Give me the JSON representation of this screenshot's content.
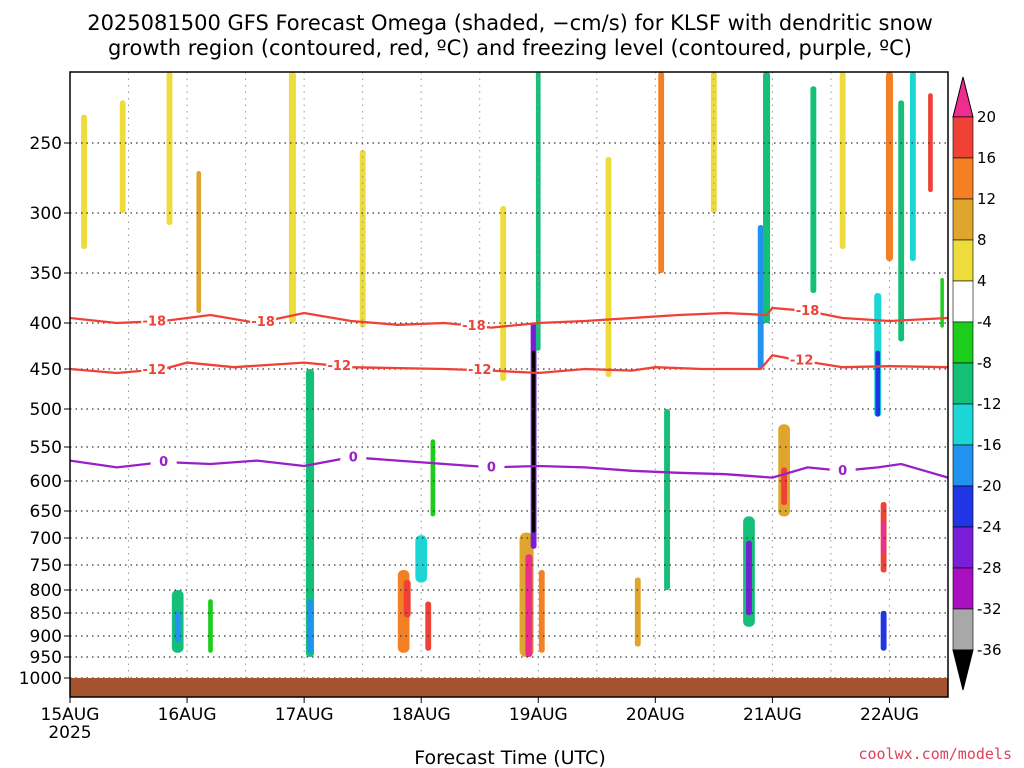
{
  "chart_data": {
    "type": "heatmap",
    "title_line1": "2025081500 GFS Forecast Omega (shaded, −cm/s) for KLSF with dendritic snow",
    "title_line2": "growth region (contoured, red, ºC) and freezing level (contoured, purple, ºC)",
    "xlabel": "Forecast Time (UTC)",
    "credit": "coolwx.com/models",
    "x_ticks": [
      {
        "day": 0,
        "label": "15AUG",
        "sub": "2025"
      },
      {
        "day": 1,
        "label": "16AUG"
      },
      {
        "day": 2,
        "label": "17AUG"
      },
      {
        "day": 3,
        "label": "18AUG"
      },
      {
        "day": 4,
        "label": "19AUG"
      },
      {
        "day": 5,
        "label": "20AUG"
      },
      {
        "day": 6,
        "label": "21AUG"
      },
      {
        "day": 7,
        "label": "22AUG"
      }
    ],
    "x_range_days": [
      0,
      7.5
    ],
    "y_axis": "pressure (hPa), reversed",
    "y_range": [
      1020,
      200
    ],
    "y_ticks": [
      250,
      300,
      350,
      400,
      450,
      500,
      550,
      600,
      650,
      700,
      750,
      800,
      850,
      900,
      950,
      1000
    ],
    "grid": true,
    "colorbar": {
      "labels": [
        "20",
        "16",
        "12",
        "8",
        "4",
        "-4",
        "-8",
        "-12",
        "-16",
        "-20",
        "-24",
        "-28",
        "-32",
        "-36"
      ],
      "bins": [
        {
          "lo": 20,
          "hi": 99,
          "color": "#ee2e8e"
        },
        {
          "lo": 16,
          "hi": 20,
          "color": "#ef4136"
        },
        {
          "lo": 12,
          "hi": 16,
          "color": "#f48025"
        },
        {
          "lo": 8,
          "hi": 12,
          "color": "#e0a52c"
        },
        {
          "lo": 4,
          "hi": 8,
          "color": "#eddc3c"
        },
        {
          "lo": -4,
          "hi": 4,
          "color": "#ffffff"
        },
        {
          "lo": -8,
          "hi": -4,
          "color": "#1ccd1c"
        },
        {
          "lo": -12,
          "hi": -8,
          "color": "#14bf78"
        },
        {
          "lo": -16,
          "hi": -12,
          "color": "#1cd5d5"
        },
        {
          "lo": -20,
          "hi": -16,
          "color": "#2193ef"
        },
        {
          "lo": -24,
          "hi": -20,
          "color": "#2035e5"
        },
        {
          "lo": -28,
          "hi": -24,
          "color": "#7a1dd6"
        },
        {
          "lo": -32,
          "hi": -28,
          "color": "#a90fc0"
        },
        {
          "lo": -36,
          "hi": -32,
          "color": "#a8a8a8"
        },
        {
          "lo": -99,
          "hi": -36,
          "color": "#000000"
        }
      ]
    },
    "omega_cells": [
      {
        "day": 0.12,
        "p": 280,
        "dp": 100,
        "w": 0.05,
        "v": 5
      },
      {
        "day": 0.45,
        "p": 260,
        "dp": 80,
        "w": 0.05,
        "v": 5
      },
      {
        "day": 0.85,
        "p": 250,
        "dp": 120,
        "w": 0.05,
        "v": 6
      },
      {
        "day": 1.1,
        "p": 330,
        "dp": 120,
        "w": 0.04,
        "v": 9
      },
      {
        "day": 0.92,
        "p": 870,
        "dp": 140,
        "w": 0.1,
        "v": -9
      },
      {
        "day": 0.92,
        "p": 880,
        "dp": 70,
        "w": 0.05,
        "v": -18
      },
      {
        "day": 1.2,
        "p": 880,
        "dp": 120,
        "w": 0.04,
        "v": -7
      },
      {
        "day": 1.9,
        "p": 300,
        "dp": 200,
        "w": 0.06,
        "v": 5
      },
      {
        "day": 2.05,
        "p": 700,
        "dp": 500,
        "w": 0.07,
        "v": -10
      },
      {
        "day": 2.05,
        "p": 880,
        "dp": 120,
        "w": 0.05,
        "v": -17
      },
      {
        "day": 2.5,
        "p": 330,
        "dp": 150,
        "w": 0.05,
        "v": 6
      },
      {
        "day": 2.85,
        "p": 850,
        "dp": 180,
        "w": 0.1,
        "v": 14
      },
      {
        "day": 2.88,
        "p": 820,
        "dp": 80,
        "w": 0.06,
        "v": 18
      },
      {
        "day": 3.0,
        "p": 740,
        "dp": 90,
        "w": 0.1,
        "v": -13
      },
      {
        "day": 3.06,
        "p": 880,
        "dp": 110,
        "w": 0.05,
        "v": 19
      },
      {
        "day": 3.1,
        "p": 600,
        "dp": 120,
        "w": 0.04,
        "v": -8
      },
      {
        "day": 3.7,
        "p": 380,
        "dp": 170,
        "w": 0.05,
        "v": 5
      },
      {
        "day": 3.9,
        "p": 820,
        "dp": 260,
        "w": 0.12,
        "v": 9
      },
      {
        "day": 3.92,
        "p": 840,
        "dp": 220,
        "w": 0.06,
        "v": 21
      },
      {
        "day": 3.96,
        "p": 560,
        "dp": 320,
        "w": 0.05,
        "v": -26
      },
      {
        "day": 3.96,
        "p": 560,
        "dp": 260,
        "w": 0.03,
        "v": -40
      },
      {
        "day": 4.0,
        "p": 300,
        "dp": 260,
        "w": 0.04,
        "v": -12
      },
      {
        "day": 4.03,
        "p": 850,
        "dp": 180,
        "w": 0.05,
        "v": 14
      },
      {
        "day": 4.6,
        "p": 360,
        "dp": 200,
        "w": 0.05,
        "v": 5
      },
      {
        "day": 4.85,
        "p": 850,
        "dp": 150,
        "w": 0.05,
        "v": 9
      },
      {
        "day": 5.05,
        "p": 270,
        "dp": 160,
        "w": 0.05,
        "v": 13
      },
      {
        "day": 5.1,
        "p": 650,
        "dp": 300,
        "w": 0.05,
        "v": -9
      },
      {
        "day": 5.5,
        "p": 230,
        "dp": 140,
        "w": 0.05,
        "v": 6
      },
      {
        "day": 5.8,
        "p": 770,
        "dp": 220,
        "w": 0.1,
        "v": -9
      },
      {
        "day": 5.8,
        "p": 780,
        "dp": 150,
        "w": 0.05,
        "v": -26
      },
      {
        "day": 5.9,
        "p": 380,
        "dp": 140,
        "w": 0.05,
        "v": -18
      },
      {
        "day": 5.95,
        "p": 300,
        "dp": 200,
        "w": 0.06,
        "v": -9
      },
      {
        "day": 6.1,
        "p": 590,
        "dp": 140,
        "w": 0.1,
        "v": 10
      },
      {
        "day": 6.1,
        "p": 610,
        "dp": 60,
        "w": 0.05,
        "v": 18
      },
      {
        "day": 6.35,
        "p": 290,
        "dp": 160,
        "w": 0.05,
        "v": -9
      },
      {
        "day": 6.6,
        "p": 250,
        "dp": 160,
        "w": 0.05,
        "v": 6
      },
      {
        "day": 6.9,
        "p": 440,
        "dp": 140,
        "w": 0.06,
        "v": -16
      },
      {
        "day": 6.9,
        "p": 470,
        "dp": 80,
        "w": 0.04,
        "v": -21
      },
      {
        "day": 6.95,
        "p": 700,
        "dp": 130,
        "w": 0.05,
        "v": 17
      },
      {
        "day": 6.95,
        "p": 700,
        "dp": 60,
        "w": 0.03,
        "v": 22
      },
      {
        "day": 6.95,
        "p": 890,
        "dp": 90,
        "w": 0.05,
        "v": -21
      },
      {
        "day": 7.0,
        "p": 260,
        "dp": 160,
        "w": 0.06,
        "v": 14
      },
      {
        "day": 7.1,
        "p": 320,
        "dp": 200,
        "w": 0.05,
        "v": -9
      },
      {
        "day": 7.2,
        "p": 270,
        "dp": 140,
        "w": 0.05,
        "v": -14
      },
      {
        "day": 7.35,
        "p": 250,
        "dp": 70,
        "w": 0.04,
        "v": 18
      },
      {
        "day": 7.45,
        "p": 380,
        "dp": 50,
        "w": 0.03,
        "v": -7
      }
    ],
    "contours": [
      {
        "name": "-18",
        "color": "#ef4136",
        "labels_at_days": [
          0.72,
          1.65,
          3.45,
          6.3
        ],
        "points": [
          [
            0,
            395
          ],
          [
            0.4,
            400
          ],
          [
            0.8,
            398
          ],
          [
            1.2,
            392
          ],
          [
            1.6,
            400
          ],
          [
            2.0,
            390
          ],
          [
            2.4,
            398
          ],
          [
            2.8,
            402
          ],
          [
            3.2,
            400
          ],
          [
            3.6,
            405
          ],
          [
            4.0,
            400
          ],
          [
            4.4,
            398
          ],
          [
            4.8,
            395
          ],
          [
            5.2,
            392
          ],
          [
            5.6,
            390
          ],
          [
            5.95,
            392
          ],
          [
            6.0,
            385
          ],
          [
            6.3,
            388
          ],
          [
            6.6,
            395
          ],
          [
            7.0,
            398
          ],
          [
            7.5,
            395
          ]
        ]
      },
      {
        "name": "-12",
        "color": "#ef4136",
        "labels_at_days": [
          0.72,
          2.3,
          3.5,
          6.25
        ],
        "points": [
          [
            0,
            450
          ],
          [
            0.4,
            455
          ],
          [
            0.8,
            450
          ],
          [
            1.0,
            443
          ],
          [
            1.4,
            448
          ],
          [
            2.0,
            443
          ],
          [
            2.4,
            448
          ],
          [
            3.2,
            450
          ],
          [
            3.6,
            452
          ],
          [
            4.0,
            455
          ],
          [
            4.4,
            450
          ],
          [
            4.8,
            452
          ],
          [
            5.0,
            448
          ],
          [
            5.4,
            450
          ],
          [
            5.9,
            450
          ],
          [
            6.0,
            435
          ],
          [
            6.2,
            440
          ],
          [
            6.6,
            448
          ],
          [
            7.0,
            447
          ],
          [
            7.5,
            448
          ]
        ]
      },
      {
        "name": "0",
        "color": "#9b1fc8",
        "labels_at_days": [
          0.8,
          2.42,
          3.6,
          6.6
        ],
        "points": [
          [
            0,
            570
          ],
          [
            0.4,
            580
          ],
          [
            0.8,
            572
          ],
          [
            1.2,
            575
          ],
          [
            1.6,
            570
          ],
          [
            2.0,
            578
          ],
          [
            2.4,
            565
          ],
          [
            2.8,
            570
          ],
          [
            3.2,
            575
          ],
          [
            3.6,
            580
          ],
          [
            4.0,
            578
          ],
          [
            4.4,
            580
          ],
          [
            4.8,
            585
          ],
          [
            5.2,
            588
          ],
          [
            5.6,
            590
          ],
          [
            6.0,
            595
          ],
          [
            6.3,
            580
          ],
          [
            6.6,
            585
          ],
          [
            6.9,
            580
          ],
          [
            7.1,
            575
          ],
          [
            7.3,
            585
          ],
          [
            7.5,
            595
          ]
        ]
      }
    ],
    "ground": {
      "from_p": 1000,
      "to_p": 1020,
      "color": "#a4532e"
    }
  }
}
